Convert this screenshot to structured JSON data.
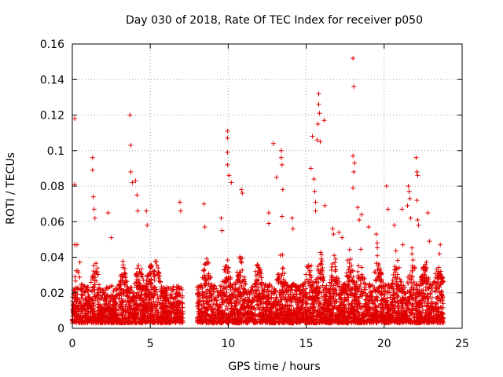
{
  "chart_data": {
    "type": "scatter",
    "title": "Day 030 of 2018, Rate Of TEC Index for receiver p050",
    "xlabel": "GPS time / hours",
    "ylabel": "ROTI / TECUs",
    "xlim": [
      0,
      25
    ],
    "ylim": [
      0,
      0.16
    ],
    "xticks": [
      0,
      5,
      10,
      15,
      20,
      25
    ],
    "xtick_labels": [
      "0",
      "5",
      "10",
      "15",
      "20",
      "25"
    ],
    "yticks": [
      0,
      0.02,
      0.04,
      0.06,
      0.08,
      0.1,
      0.12,
      0.14,
      0.16
    ],
    "ytick_labels": [
      "0",
      "0.02",
      "0.04",
      "0.06",
      "0.08",
      "0.1",
      "0.12",
      "0.14",
      "0.16"
    ],
    "grid": true,
    "marker": "+",
    "color": "#e00000",
    "data_gap_hours": [
      7.1,
      8.0
    ],
    "notable_points": [
      {
        "x": 0.15,
        "y": 0.118
      },
      {
        "x": 0.15,
        "y": 0.081
      },
      {
        "x": 0.15,
        "y": 0.047
      },
      {
        "x": 0.3,
        "y": 0.047
      },
      {
        "x": 1.3,
        "y": 0.096
      },
      {
        "x": 1.3,
        "y": 0.089
      },
      {
        "x": 1.35,
        "y": 0.074
      },
      {
        "x": 1.4,
        "y": 0.067
      },
      {
        "x": 1.45,
        "y": 0.062
      },
      {
        "x": 2.3,
        "y": 0.065
      },
      {
        "x": 2.5,
        "y": 0.051
      },
      {
        "x": 3.7,
        "y": 0.12
      },
      {
        "x": 3.75,
        "y": 0.103
      },
      {
        "x": 3.75,
        "y": 0.088
      },
      {
        "x": 3.85,
        "y": 0.082
      },
      {
        "x": 4.05,
        "y": 0.083
      },
      {
        "x": 4.15,
        "y": 0.075
      },
      {
        "x": 4.2,
        "y": 0.066
      },
      {
        "x": 4.75,
        "y": 0.066
      },
      {
        "x": 4.8,
        "y": 0.058
      },
      {
        "x": 6.9,
        "y": 0.071
      },
      {
        "x": 6.95,
        "y": 0.066
      },
      {
        "x": 8.45,
        "y": 0.07
      },
      {
        "x": 8.5,
        "y": 0.057
      },
      {
        "x": 9.55,
        "y": 0.062
      },
      {
        "x": 9.6,
        "y": 0.055
      },
      {
        "x": 9.95,
        "y": 0.111
      },
      {
        "x": 9.95,
        "y": 0.107
      },
      {
        "x": 9.95,
        "y": 0.099
      },
      {
        "x": 9.95,
        "y": 0.092
      },
      {
        "x": 10.05,
        "y": 0.086
      },
      {
        "x": 10.2,
        "y": 0.082
      },
      {
        "x": 10.85,
        "y": 0.078
      },
      {
        "x": 10.9,
        "y": 0.076
      },
      {
        "x": 12.6,
        "y": 0.065
      },
      {
        "x": 12.6,
        "y": 0.059
      },
      {
        "x": 12.9,
        "y": 0.104
      },
      {
        "x": 13.1,
        "y": 0.085
      },
      {
        "x": 13.4,
        "y": 0.1
      },
      {
        "x": 13.4,
        "y": 0.096
      },
      {
        "x": 13.45,
        "y": 0.092
      },
      {
        "x": 13.5,
        "y": 0.078
      },
      {
        "x": 13.45,
        "y": 0.063
      },
      {
        "x": 14.1,
        "y": 0.062
      },
      {
        "x": 14.15,
        "y": 0.056
      },
      {
        "x": 15.3,
        "y": 0.09
      },
      {
        "x": 15.4,
        "y": 0.108
      },
      {
        "x": 15.5,
        "y": 0.084
      },
      {
        "x": 15.55,
        "y": 0.077
      },
      {
        "x": 15.6,
        "y": 0.071
      },
      {
        "x": 15.7,
        "y": 0.106
      },
      {
        "x": 15.75,
        "y": 0.115
      },
      {
        "x": 15.8,
        "y": 0.132
      },
      {
        "x": 15.8,
        "y": 0.126
      },
      {
        "x": 15.85,
        "y": 0.121
      },
      {
        "x": 15.9,
        "y": 0.105
      },
      {
        "x": 15.6,
        "y": 0.066
      },
      {
        "x": 16.15,
        "y": 0.117
      },
      {
        "x": 16.2,
        "y": 0.069
      },
      {
        "x": 16.7,
        "y": 0.056
      },
      {
        "x": 16.75,
        "y": 0.053
      },
      {
        "x": 17.1,
        "y": 0.054
      },
      {
        "x": 17.3,
        "y": 0.051
      },
      {
        "x": 18.0,
        "y": 0.152
      },
      {
        "x": 18.05,
        "y": 0.136
      },
      {
        "x": 18.0,
        "y": 0.097
      },
      {
        "x": 18.05,
        "y": 0.088
      },
      {
        "x": 18.0,
        "y": 0.079
      },
      {
        "x": 18.1,
        "y": 0.093
      },
      {
        "x": 18.3,
        "y": 0.068
      },
      {
        "x": 18.4,
        "y": 0.061
      },
      {
        "x": 18.55,
        "y": 0.064
      },
      {
        "x": 19.0,
        "y": 0.057
      },
      {
        "x": 19.5,
        "y": 0.053
      },
      {
        "x": 19.55,
        "y": 0.048
      },
      {
        "x": 20.15,
        "y": 0.08
      },
      {
        "x": 20.25,
        "y": 0.067
      },
      {
        "x": 20.65,
        "y": 0.058
      },
      {
        "x": 21.15,
        "y": 0.067
      },
      {
        "x": 21.2,
        "y": 0.047
      },
      {
        "x": 21.5,
        "y": 0.069
      },
      {
        "x": 21.55,
        "y": 0.08
      },
      {
        "x": 21.6,
        "y": 0.077
      },
      {
        "x": 21.65,
        "y": 0.073
      },
      {
        "x": 21.7,
        "y": 0.062
      },
      {
        "x": 22.05,
        "y": 0.096
      },
      {
        "x": 22.1,
        "y": 0.088
      },
      {
        "x": 22.15,
        "y": 0.086
      },
      {
        "x": 22.1,
        "y": 0.072
      },
      {
        "x": 22.15,
        "y": 0.061
      },
      {
        "x": 22.2,
        "y": 0.058
      },
      {
        "x": 22.8,
        "y": 0.065
      },
      {
        "x": 22.9,
        "y": 0.049
      },
      {
        "x": 23.6,
        "y": 0.047
      }
    ],
    "dense_segments": [
      {
        "x0": 0.0,
        "x1": 7.1,
        "ymin": 0.003,
        "ymax": 0.024,
        "peak_hours": [
          0.4,
          1.5,
          3.3,
          4.3,
          5.0,
          5.4
        ],
        "peak_max": 0.045
      },
      {
        "x0": 8.0,
        "x1": 23.8,
        "ymin": 0.003,
        "ymax": 0.025,
        "peak_hours": [
          8.6,
          9.9,
          10.8,
          11.9,
          13.4,
          15.2,
          15.9,
          16.8,
          17.8,
          18.5,
          19.6,
          20.8,
          21.8,
          22.6,
          23.5
        ],
        "peak_max": 0.048
      }
    ]
  }
}
